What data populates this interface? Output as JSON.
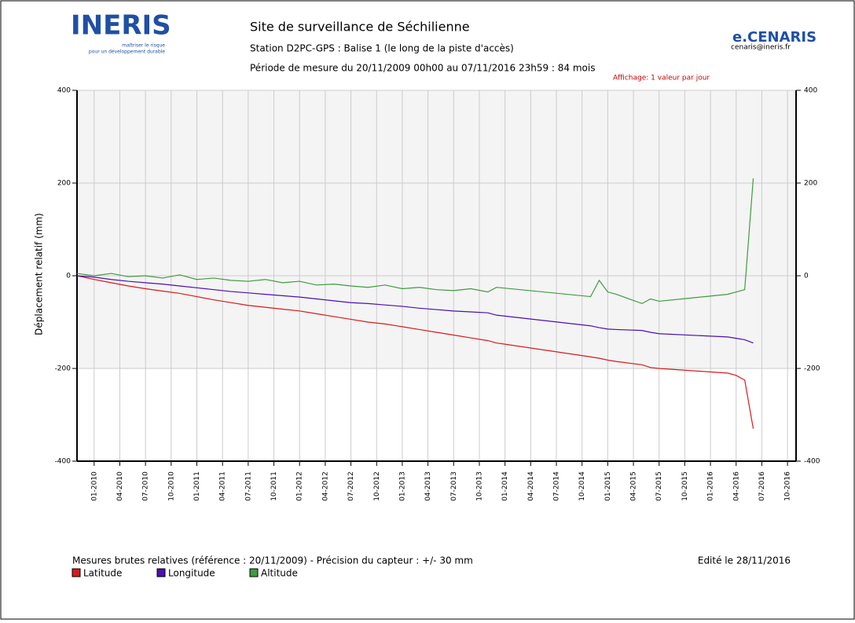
{
  "header": {
    "logo": "INERIS",
    "logo_tagline_1": "maîtriser le risque",
    "logo_tagline_2": "pour un développement durable",
    "brand": "e.CENARIS",
    "brand_email": "cenaris@ineris.fr"
  },
  "chart_data": {
    "type": "line",
    "title": "Site de surveillance de Séchilienne",
    "subtitle": "Station D2PC-GPS : Balise 1 (le long de la piste d'accès)",
    "period": "Période de mesure du 20/11/2009 00h00 au 07/11/2016 23h59 : 84 mois",
    "annotation": "Affichage: 1 valeur par jour",
    "y_label": "Déplacement relatif (mm)",
    "footer": "Mesures brutes relatives (référence : 20/11/2009) - Précision du capteur : +/- 30 mm",
    "edited": "Edité le 28/11/2016",
    "x": [
      "11-2009",
      "01-2010",
      "03-2010",
      "05-2010",
      "07-2010",
      "09-2010",
      "11-2010",
      "01-2011",
      "03-2011",
      "05-2011",
      "07-2011",
      "09-2011",
      "11-2011",
      "01-2012",
      "03-2012",
      "05-2012",
      "07-2012",
      "09-2012",
      "11-2012",
      "01-2013",
      "03-2013",
      "05-2013",
      "07-2013",
      "09-2013",
      "11-2013",
      "12-2013",
      "11-2014",
      "12-2014",
      "01-2015",
      "02-2015",
      "05-2015",
      "06-2015",
      "07-2015",
      "03-2016",
      "04-2016",
      "05-2016",
      "06-2016"
    ],
    "series": [
      {
        "name": "Latitude",
        "color": "#d81b1b",
        "values": [
          0,
          -8,
          -15,
          -22,
          -28,
          -33,
          -38,
          -45,
          -52,
          -58,
          -64,
          -68,
          -72,
          -76,
          -82,
          -88,
          -94,
          -100,
          -104,
          -110,
          -116,
          -122,
          -128,
          -134,
          -140,
          -145,
          -175,
          -178,
          -182,
          -185,
          -192,
          -198,
          -200,
          -210,
          -215,
          -225,
          -330
        ]
      },
      {
        "name": "Longitude",
        "color": "#4b0fb4",
        "values": [
          0,
          -3,
          -8,
          -12,
          -15,
          -18,
          -22,
          -26,
          -30,
          -34,
          -37,
          -40,
          -43,
          -46,
          -50,
          -54,
          -58,
          -60,
          -63,
          -66,
          -70,
          -73,
          -76,
          -78,
          -80,
          -85,
          -108,
          -112,
          -115,
          -116,
          -118,
          -122,
          -125,
          -132,
          -135,
          -138,
          -145
        ]
      },
      {
        "name": "Altitude",
        "color": "#3f9b3f",
        "values": [
          5,
          0,
          5,
          -2,
          0,
          -5,
          2,
          -8,
          -5,
          -10,
          -12,
          -8,
          -15,
          -12,
          -20,
          -18,
          -22,
          -25,
          -20,
          -28,
          -25,
          -30,
          -32,
          -28,
          -35,
          -25,
          -45,
          -10,
          -35,
          -40,
          -60,
          -50,
          -55,
          -40,
          -35,
          -30,
          210
        ]
      }
    ],
    "xlim": [
      "11-2009",
      "11-2016"
    ],
    "xticks": [
      "01-2010",
      "04-2010",
      "07-2010",
      "10-2010",
      "01-2011",
      "04-2011",
      "07-2011",
      "10-2011",
      "01-2012",
      "04-2012",
      "07-2012",
      "10-2012",
      "01-2013",
      "04-2013",
      "07-2013",
      "10-2013",
      "01-2014",
      "04-2014",
      "07-2014",
      "10-2014",
      "01-2015",
      "04-2015",
      "07-2015",
      "10-2015",
      "01-2016",
      "04-2016",
      "07-2016",
      "10-2016"
    ],
    "ylim": [
      -400,
      400
    ],
    "yticks": [
      -400,
      -200,
      0,
      200,
      400
    ],
    "grid": true
  }
}
